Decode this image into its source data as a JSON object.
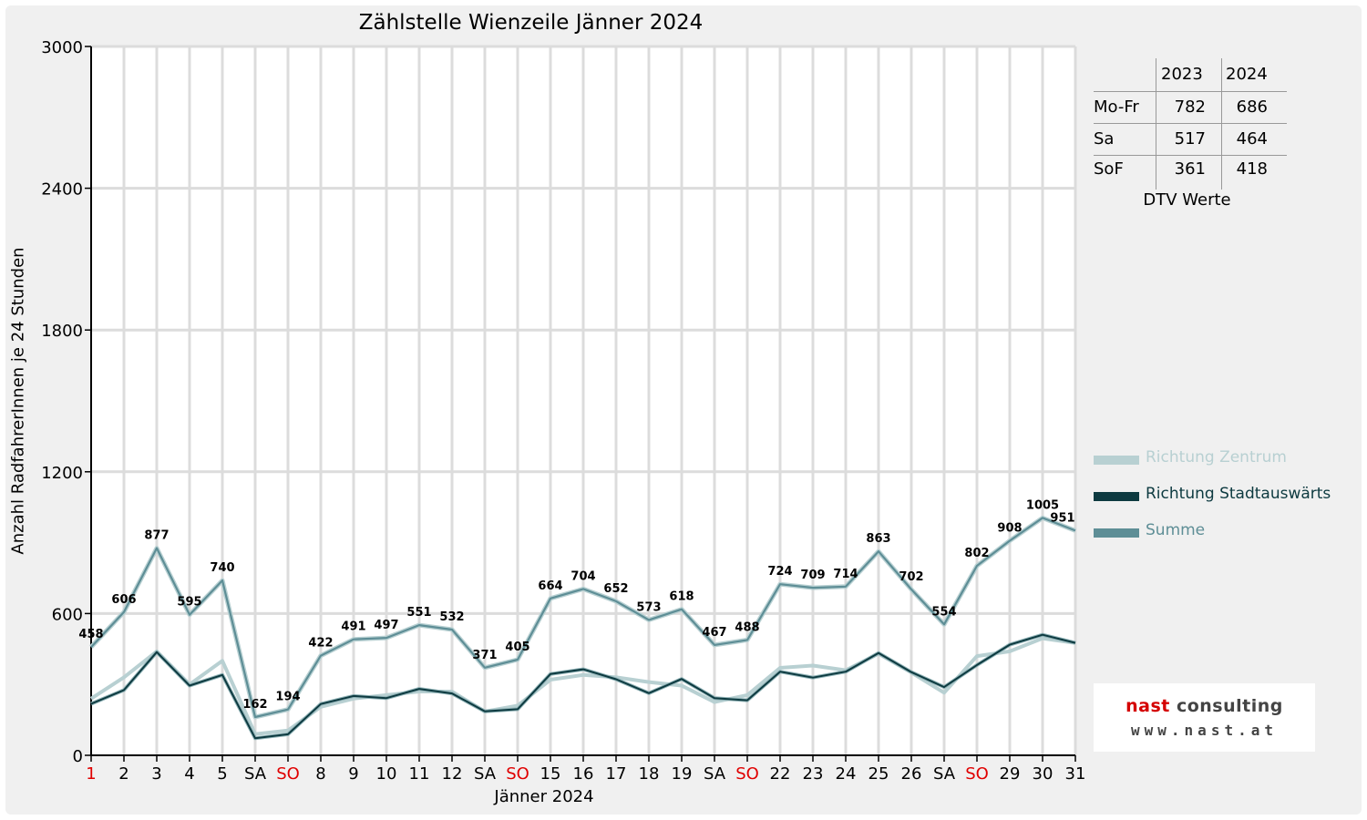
{
  "chart_data": {
    "type": "line",
    "title": "Zählstelle Wienzeile Jänner 2024",
    "xlabel": "Jänner 2024",
    "ylabel": "Anzahl RadfahrerInnen je 24 Stunden",
    "ylim": [
      0,
      3000
    ],
    "yticks": [
      0,
      600,
      1200,
      1800,
      2400,
      3000
    ],
    "grid": true,
    "legend_position": "right",
    "categories": [
      "1",
      "2",
      "3",
      "4",
      "5",
      "SA",
      "SO",
      "8",
      "9",
      "10",
      "11",
      "12",
      "SA",
      "SO",
      "15",
      "16",
      "17",
      "18",
      "19",
      "SA",
      "SO",
      "22",
      "23",
      "24",
      "25",
      "26",
      "SA",
      "SO",
      "29",
      "30",
      "31"
    ],
    "red_categories": [
      0,
      6,
      13,
      20,
      27
    ],
    "series": [
      {
        "name": "Richtung Zentrum",
        "color": "#b8d0d2",
        "width": 4,
        "values": [
          240,
          330,
          440,
          300,
          400,
          90,
          105,
          205,
          240,
          255,
          270,
          270,
          185,
          210,
          320,
          340,
          330,
          310,
          295,
          225,
          255,
          370,
          380,
          360,
          430,
          350,
          265,
          420,
          440,
          495,
          475
        ]
      },
      {
        "name": "Richtung Stadtauswärts",
        "color": "#0d3a40",
        "width": 3,
        "values": [
          218,
          276,
          437,
          295,
          340,
          72,
          89,
          217,
          251,
          242,
          281,
          262,
          186,
          195,
          344,
          364,
          322,
          263,
          323,
          242,
          233,
          354,
          329,
          354,
          433,
          352,
          289,
          382,
          468,
          510,
          476
        ]
      },
      {
        "name": "Summe",
        "color": "#5e8e96",
        "width": 4,
        "values": [
          458,
          606,
          877,
          595,
          740,
          162,
          194,
          422,
          491,
          497,
          551,
          532,
          371,
          405,
          664,
          704,
          652,
          573,
          618,
          467,
          488,
          724,
          709,
          714,
          863,
          702,
          554,
          802,
          908,
          1005,
          951
        ],
        "labels": [
          "458",
          "606",
          "877",
          "595",
          "740",
          "162",
          "194",
          "422",
          "491",
          "497",
          "551",
          "532",
          "371",
          "405",
          "664",
          "704",
          "652",
          "573",
          "618",
          "467",
          "488",
          "724",
          "709",
          "714",
          "863",
          "702",
          "554",
          "802",
          "908",
          "1005",
          "951"
        ]
      }
    ]
  },
  "dtv_table": {
    "headers": [
      "2023",
      "2024"
    ],
    "rows": [
      {
        "label": "Mo-Fr",
        "v2023": "782",
        "v2024": "686"
      },
      {
        "label": "Sa",
        "v2023": "517",
        "v2024": "464"
      },
      {
        "label": "SoF",
        "v2023": "361",
        "v2024": "418"
      }
    ],
    "caption": "DTV Werte"
  },
  "logo": {
    "name": "nast consulting",
    "url": "www.nast.at"
  }
}
